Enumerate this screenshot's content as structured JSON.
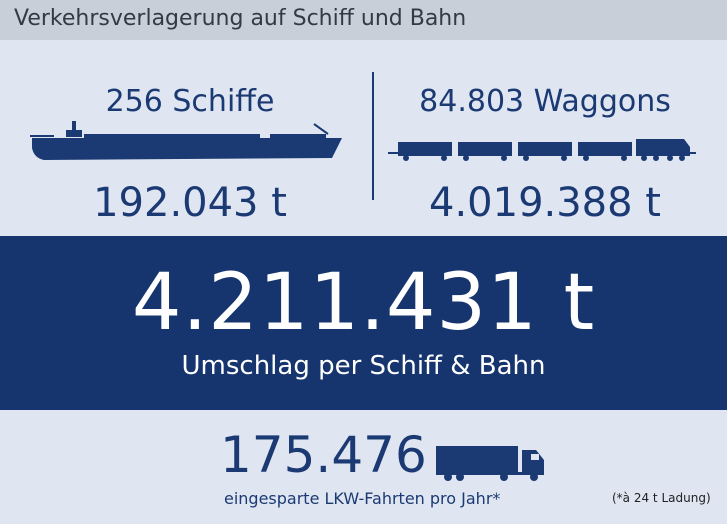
{
  "header": {
    "title": "Verkehrsverlagerung auf Schiff und Bahn"
  },
  "ship": {
    "count_label": "256 Schiffe",
    "tonnage": "192.043 t",
    "icon": "ship-icon"
  },
  "rail": {
    "count_label": "84.803 Waggons",
    "tonnage": "4.019.388 t",
    "icon": "train-icon"
  },
  "total": {
    "value": "4.211.431 t",
    "label": "Umschlag per Schiff & Bahn"
  },
  "trucks": {
    "value": "175.476",
    "label": "eingesparte LKW-Fahrten pro Jahr*",
    "icon": "truck-icon"
  },
  "footnote": "(*à 24 t Ladung)",
  "colors": {
    "navy": "#16356e",
    "background": "#dfe5f1",
    "titlebar": "#c9cfd9"
  }
}
